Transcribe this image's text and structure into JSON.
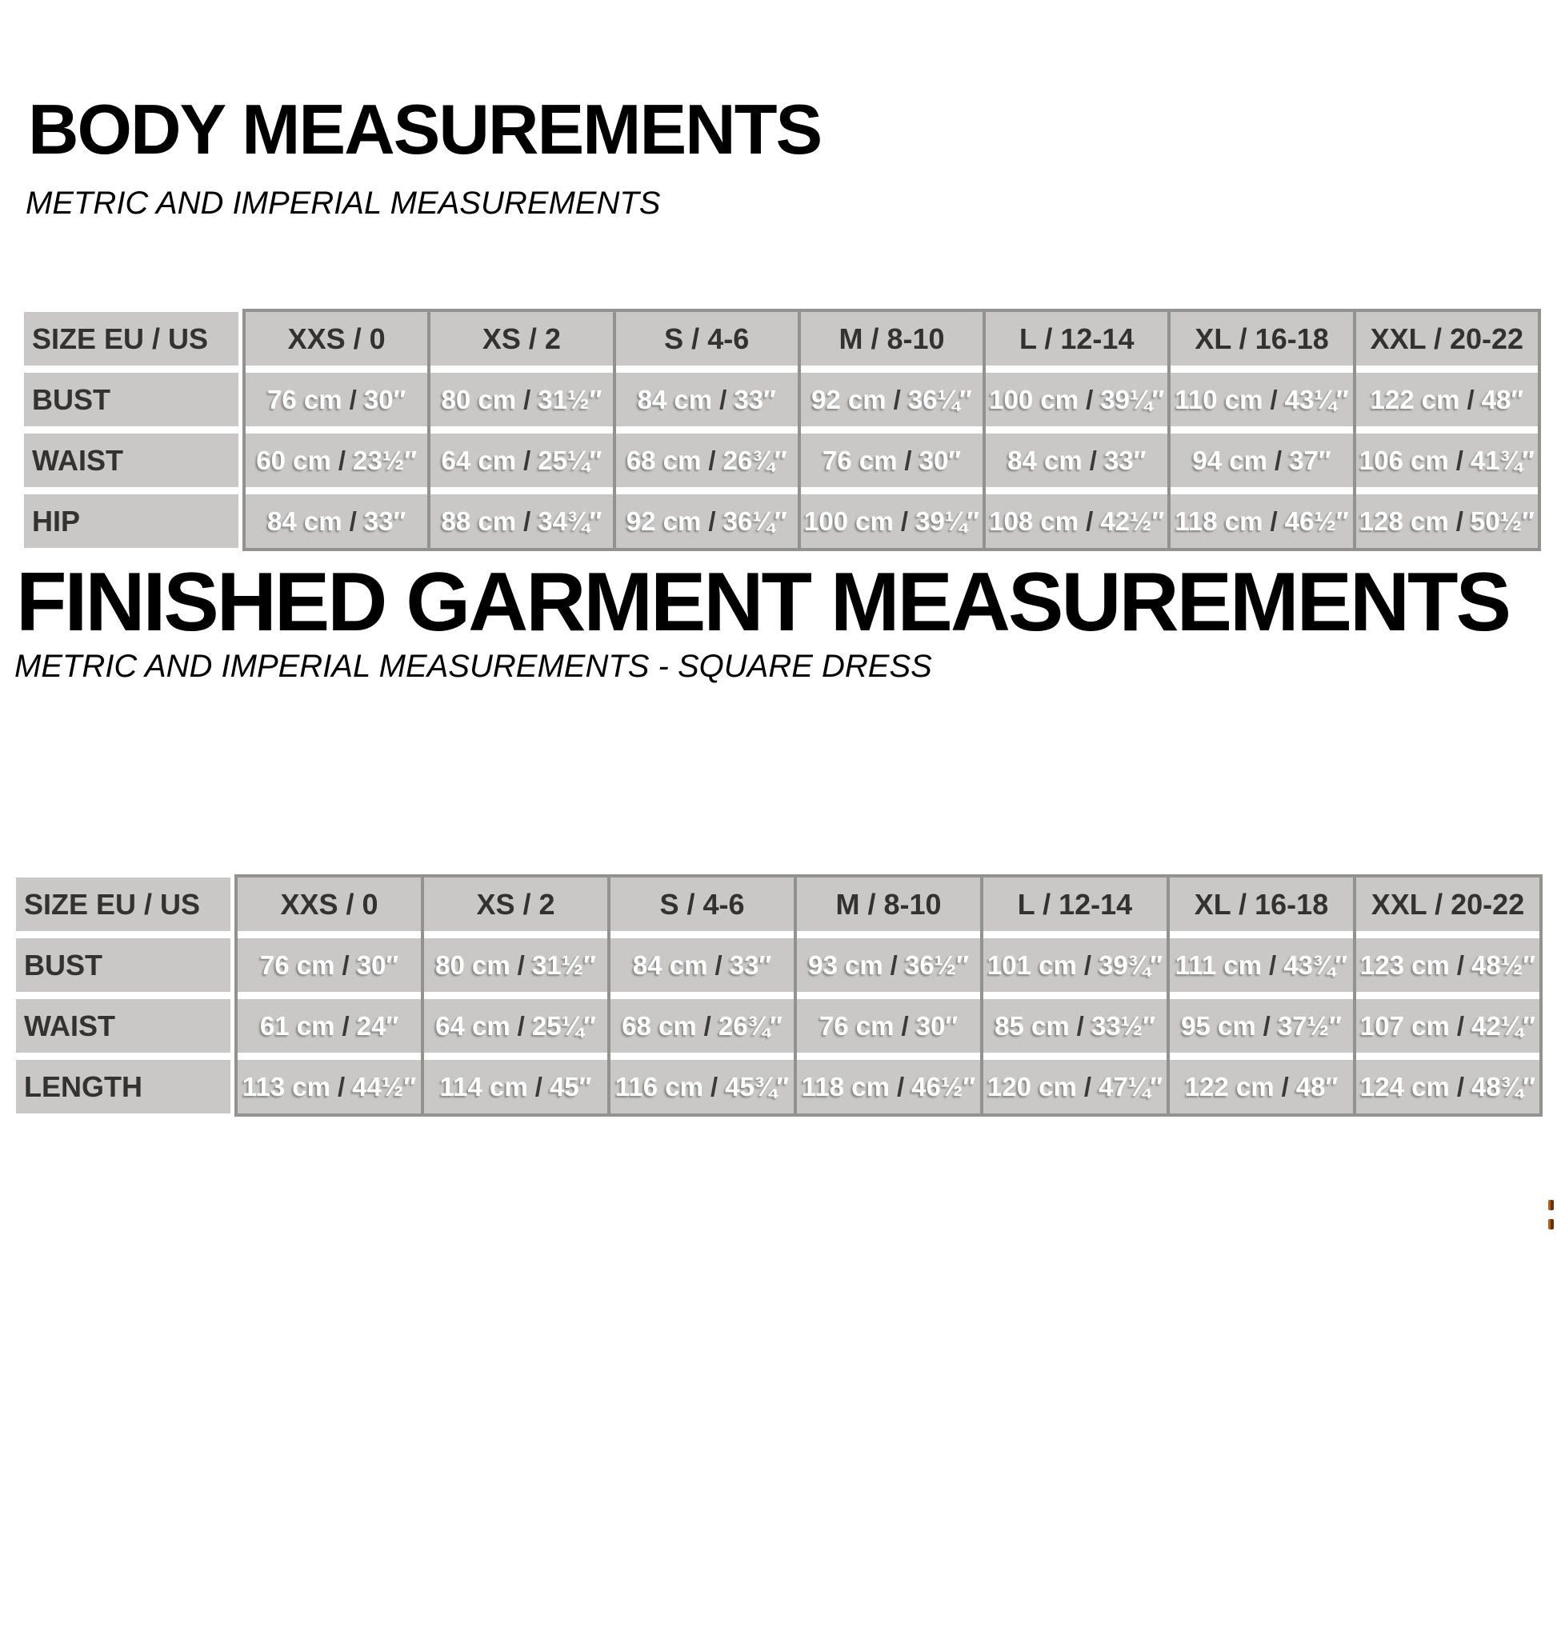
{
  "colors": {
    "page_background": "#ffffff",
    "cell_background": "#c9c8c6",
    "block_border": "#92928e",
    "header_text": "#33322f",
    "value_text": "#ffffff",
    "slash_text": "#3a3936",
    "title_text": "#000000"
  },
  "sections": [
    {
      "title": "BODY MEASUREMENTS",
      "subtitle": "METRIC AND IMPERIAL MEASUREMENTS",
      "table": {
        "header": [
          "SIZE EU / US",
          "XXS / 0",
          "XS / 2",
          "S / 4-6",
          "M / 8-10",
          "L / 12-14",
          "XL / 16-18",
          "XXL / 20-22"
        ],
        "rows": [
          {
            "label": "BUST",
            "values": [
              {
                "metric": "76 cm",
                "imperial": "30″"
              },
              {
                "metric": "80 cm",
                "imperial": "31½″"
              },
              {
                "metric": "84 cm",
                "imperial": "33″"
              },
              {
                "metric": "92 cm",
                "imperial": "36¼″"
              },
              {
                "metric": "100 cm",
                "imperial": "39¼″"
              },
              {
                "metric": "110 cm",
                "imperial": "43¼″"
              },
              {
                "metric": "122 cm",
                "imperial": "48″"
              }
            ]
          },
          {
            "label": "WAIST",
            "values": [
              {
                "metric": "60 cm",
                "imperial": "23½″"
              },
              {
                "metric": "64 cm",
                "imperial": "25¼″"
              },
              {
                "metric": "68 cm",
                "imperial": "26¾″"
              },
              {
                "metric": "76 cm",
                "imperial": "30″"
              },
              {
                "metric": "84 cm",
                "imperial": "33″"
              },
              {
                "metric": "94 cm",
                "imperial": "37″"
              },
              {
                "metric": "106 cm",
                "imperial": "41¾″"
              }
            ]
          },
          {
            "label": "HIP",
            "values": [
              {
                "metric": "84 cm",
                "imperial": "33″"
              },
              {
                "metric": "88 cm",
                "imperial": "34¾″"
              },
              {
                "metric": "92 cm",
                "imperial": "36¼″"
              },
              {
                "metric": "100 cm",
                "imperial": "39¼″"
              },
              {
                "metric": "108 cm",
                "imperial": "42½″"
              },
              {
                "metric": "118 cm",
                "imperial": "46½″"
              },
              {
                "metric": "128 cm",
                "imperial": "50½″"
              }
            ]
          }
        ]
      }
    },
    {
      "title": "FINISHED GARMENT MEASUREMENTS",
      "subtitle": "METRIC AND IMPERIAL MEASUREMENTS - SQUARE DRESS",
      "table": {
        "header": [
          "SIZE EU / US",
          "XXS / 0",
          "XS / 2",
          "S / 4-6",
          "M / 8-10",
          "L / 12-14",
          "XL / 16-18",
          "XXL / 20-22"
        ],
        "rows": [
          {
            "label": "BUST",
            "values": [
              {
                "metric": "76 cm",
                "imperial": "30″"
              },
              {
                "metric": "80 cm",
                "imperial": "31½″"
              },
              {
                "metric": "84 cm",
                "imperial": "33″"
              },
              {
                "metric": "93 cm",
                "imperial": "36½″"
              },
              {
                "metric": "101 cm",
                "imperial": "39¾″"
              },
              {
                "metric": "111 cm",
                "imperial": "43¾″"
              },
              {
                "metric": "123 cm",
                "imperial": "48½″"
              }
            ]
          },
          {
            "label": "WAIST",
            "values": [
              {
                "metric": "61 cm",
                "imperial": "24″"
              },
              {
                "metric": "64 cm",
                "imperial": "25¼″"
              },
              {
                "metric": "68 cm",
                "imperial": "26¾″"
              },
              {
                "metric": "76 cm",
                "imperial": "30″"
              },
              {
                "metric": "85 cm",
                "imperial": "33½″"
              },
              {
                "metric": "95 cm",
                "imperial": "37½″"
              },
              {
                "metric": "107 cm",
                "imperial": "42¼″"
              }
            ]
          },
          {
            "label": "LENGTH",
            "values": [
              {
                "metric": "113 cm",
                "imperial": "44½″"
              },
              {
                "metric": "114 cm",
                "imperial": "45″"
              },
              {
                "metric": "116 cm",
                "imperial": "45¾″"
              },
              {
                "metric": "118 cm",
                "imperial": "46½″"
              },
              {
                "metric": "120 cm",
                "imperial": "47¼″"
              },
              {
                "metric": "122 cm",
                "imperial": "48″"
              },
              {
                "metric": "124 cm",
                "imperial": "48¾″"
              }
            ]
          }
        ]
      }
    }
  ]
}
